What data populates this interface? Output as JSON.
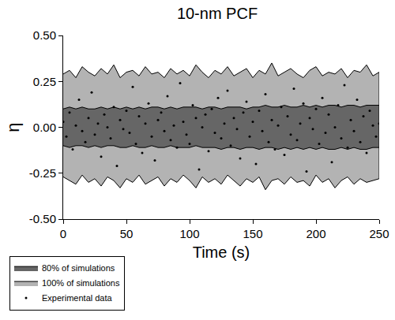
{
  "chart_data": {
    "type": "scatter",
    "title": "10-nm PCF",
    "x_label": "Time (s)",
    "y_label": "η",
    "xlim": [
      0,
      250
    ],
    "ylim": [
      -0.5,
      0.5
    ],
    "xticks": [
      0,
      50,
      100,
      150,
      200,
      250
    ],
    "yticks": [
      {
        "value": -0.5,
        "label": "-0.50"
      },
      {
        "value": -0.25,
        "label": "-0.25"
      },
      {
        "value": 0,
        "label": "0.00"
      },
      {
        "value": 0.25,
        "label": "0.25"
      },
      {
        "value": 0.5,
        "label": "0.50"
      }
    ],
    "grid": false,
    "legend": "bottom left",
    "series": [
      {
        "name": "100% of simulations",
        "type": "band",
        "color": "#b3b3b3",
        "x": [
          0,
          5,
          10,
          15,
          20,
          25,
          30,
          35,
          40,
          45,
          50,
          55,
          60,
          65,
          70,
          75,
          80,
          85,
          90,
          95,
          100,
          105,
          110,
          115,
          120,
          125,
          130,
          135,
          140,
          145,
          150,
          155,
          160,
          165,
          170,
          175,
          180,
          185,
          190,
          195,
          200,
          205,
          210,
          215,
          220,
          225,
          230,
          235,
          240,
          245,
          250
        ],
        "upper": [
          0.29,
          0.31,
          0.27,
          0.33,
          0.3,
          0.28,
          0.32,
          0.29,
          0.34,
          0.27,
          0.3,
          0.31,
          0.28,
          0.33,
          0.29,
          0.3,
          0.27,
          0.32,
          0.29,
          0.31,
          0.28,
          0.34,
          0.3,
          0.27,
          0.31,
          0.29,
          0.33,
          0.28,
          0.3,
          0.32,
          0.27,
          0.31,
          0.29,
          0.35,
          0.28,
          0.3,
          0.32,
          0.29,
          0.27,
          0.31,
          0.33,
          0.28,
          0.3,
          0.29,
          0.32,
          0.27,
          0.31,
          0.3,
          0.34,
          0.28,
          0.3
        ],
        "lower": [
          -0.27,
          -0.29,
          -0.31,
          -0.26,
          -0.3,
          -0.28,
          -0.32,
          -0.27,
          -0.29,
          -0.33,
          -0.28,
          -0.3,
          -0.26,
          -0.31,
          -0.29,
          -0.27,
          -0.32,
          -0.28,
          -0.3,
          -0.26,
          -0.29,
          -0.33,
          -0.27,
          -0.3,
          -0.28,
          -0.31,
          -0.26,
          -0.29,
          -0.32,
          -0.28,
          -0.3,
          -0.27,
          -0.34,
          -0.29,
          -0.28,
          -0.31,
          -0.27,
          -0.3,
          -0.29,
          -0.32,
          -0.26,
          -0.3,
          -0.28,
          -0.33,
          -0.29,
          -0.27,
          -0.31,
          -0.28,
          -0.3,
          -0.29,
          -0.28
        ]
      },
      {
        "name": "80% of simulations",
        "type": "band",
        "color": "#666666",
        "x": [
          0,
          5,
          10,
          15,
          20,
          25,
          30,
          35,
          40,
          45,
          50,
          55,
          60,
          65,
          70,
          75,
          80,
          85,
          90,
          95,
          100,
          105,
          110,
          115,
          120,
          125,
          130,
          135,
          140,
          145,
          150,
          155,
          160,
          165,
          170,
          175,
          180,
          185,
          190,
          195,
          200,
          205,
          210,
          215,
          220,
          225,
          230,
          235,
          240,
          245,
          250
        ],
        "upper": [
          0.1,
          0.11,
          0.1,
          0.11,
          0.1,
          0.1,
          0.11,
          0.1,
          0.11,
          0.1,
          0.11,
          0.1,
          0.11,
          0.1,
          0.11,
          0.11,
          0.1,
          0.11,
          0.1,
          0.11,
          0.11,
          0.11,
          0.1,
          0.11,
          0.11,
          0.1,
          0.11,
          0.11,
          0.11,
          0.1,
          0.11,
          0.11,
          0.12,
          0.11,
          0.11,
          0.12,
          0.11,
          0.11,
          0.12,
          0.11,
          0.12,
          0.11,
          0.12,
          0.12,
          0.11,
          0.12,
          0.12,
          0.11,
          0.12,
          0.12,
          0.12
        ],
        "lower": [
          -0.1,
          -0.11,
          -0.1,
          -0.1,
          -0.11,
          -0.1,
          -0.11,
          -0.1,
          -0.1,
          -0.11,
          -0.11,
          -0.1,
          -0.11,
          -0.11,
          -0.1,
          -0.11,
          -0.11,
          -0.1,
          -0.11,
          -0.11,
          -0.11,
          -0.1,
          -0.11,
          -0.11,
          -0.11,
          -0.12,
          -0.11,
          -0.11,
          -0.12,
          -0.11,
          -0.11,
          -0.12,
          -0.11,
          -0.11,
          -0.12,
          -0.11,
          -0.12,
          -0.11,
          -0.12,
          -0.11,
          -0.12,
          -0.11,
          -0.12,
          -0.12,
          -0.11,
          -0.12,
          -0.11,
          -0.12,
          -0.12,
          -0.11,
          -0.11
        ]
      },
      {
        "name": "Experimental data",
        "type": "scatter",
        "color": "#000000",
        "marker": "circle",
        "x": [
          0,
          2.5,
          5,
          7.5,
          10,
          12.5,
          15,
          17.5,
          20,
          22.5,
          25,
          27.5,
          30,
          32.5,
          35,
          37.5,
          40,
          42.5,
          45,
          47.5,
          50,
          52.5,
          55,
          57.5,
          60,
          62.5,
          65,
          67.5,
          70,
          72.5,
          75,
          77.5,
          80,
          82.5,
          85,
          87.5,
          90,
          92.5,
          95,
          97.5,
          100,
          102.5,
          105,
          107.5,
          110,
          112.5,
          115,
          117.5,
          120,
          122.5,
          125,
          127.5,
          130,
          132.5,
          135,
          137.5,
          140,
          142.5,
          145,
          147.5,
          150,
          152.5,
          155,
          157.5,
          160,
          162.5,
          165,
          167.5,
          170,
          172.5,
          175,
          177.5,
          180,
          182.5,
          185,
          187.5,
          190,
          192.5,
          195,
          197.5,
          200,
          202.5,
          205,
          207.5,
          210,
          212.5,
          215,
          217.5,
          220,
          222.5,
          225,
          227.5,
          230,
          232.5,
          235,
          237.5,
          240,
          242.5,
          245,
          247.5,
          250
        ],
        "values": [
          0.03,
          -0.05,
          0.08,
          -0.12,
          0.01,
          0.15,
          -0.02,
          -0.08,
          0.05,
          0.19,
          -0.04,
          0.02,
          -0.16,
          0.07,
          0.0,
          -0.06,
          0.11,
          -0.21,
          0.04,
          -0.01,
          0.09,
          -0.03,
          0.22,
          -0.09,
          0.06,
          -0.14,
          0.02,
          0.13,
          -0.05,
          -0.18,
          0.04,
          0.08,
          -0.02,
          0.17,
          -0.07,
          0.01,
          -0.11,
          0.24,
          0.03,
          -0.04,
          -0.09,
          0.12,
          0.05,
          -0.23,
          0.0,
          0.07,
          -0.13,
          0.1,
          -0.03,
          0.16,
          -0.06,
          0.02,
          0.2,
          -0.1,
          0.05,
          -0.01,
          -0.17,
          0.08,
          0.14,
          -0.05,
          0.03,
          -0.2,
          0.09,
          -0.02,
          0.18,
          -0.08,
          0.04,
          -0.12,
          0.01,
          0.11,
          -0.15,
          0.06,
          -0.04,
          0.21,
          -0.07,
          0.02,
          0.13,
          -0.24,
          0.05,
          -0.01,
          0.1,
          -0.09,
          0.16,
          -0.03,
          0.07,
          -0.19,
          0.0,
          0.12,
          -0.06,
          0.23,
          -0.11,
          0.04,
          -0.02,
          0.15,
          -0.08,
          0.06,
          -0.14,
          0.09,
          0.01,
          -0.05,
          0.02
        ]
      }
    ]
  }
}
